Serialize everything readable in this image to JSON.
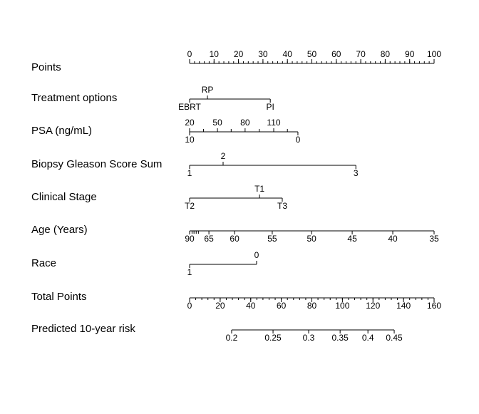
{
  "nomogram": {
    "points_scale": {
      "label": "Points",
      "lim": [
        0,
        100
      ],
      "ticks": [
        0,
        10,
        20,
        30,
        40,
        50,
        60,
        70,
        80,
        90,
        100
      ],
      "minor_step": 2,
      "tick_side": "above"
    },
    "variables": [
      {
        "label": "Treatment options",
        "ticks": [
          {
            "label": "RP",
            "points": 7.3,
            "side": "above"
          },
          {
            "label": "EBRT",
            "points": 0,
            "side": "below"
          },
          {
            "label": "PI",
            "points": 33,
            "side": "below"
          }
        ]
      },
      {
        "label": "PSA (ng/mL)",
        "ticks": [
          {
            "label": 20,
            "points": 0,
            "side": "above"
          },
          {
            "label": null,
            "points": 5.7,
            "side": "above"
          },
          {
            "label": 50,
            "points": 11.4,
            "side": "above"
          },
          {
            "label": null,
            "points": 17,
            "side": "above"
          },
          {
            "label": 80,
            "points": 22.7,
            "side": "above"
          },
          {
            "label": null,
            "points": 28.5,
            "side": "above"
          },
          {
            "label": 110,
            "points": 34.4,
            "side": "above"
          },
          {
            "label": null,
            "points": 40,
            "side": "above"
          },
          {
            "label": 10,
            "points": 0,
            "side": "below"
          },
          {
            "label": 0,
            "points": 44.3,
            "side": "below"
          }
        ]
      },
      {
        "label": "Biopsy Gleason Score Sum",
        "ticks": [
          {
            "label": 1,
            "points": 0,
            "side": "below"
          },
          {
            "label": 2,
            "points": 13.7,
            "side": "above"
          },
          {
            "label": 3,
            "points": 68,
            "side": "below"
          }
        ]
      },
      {
        "label": "Clinical Stage",
        "ticks": [
          {
            "label": "T2",
            "points": 0,
            "side": "below"
          },
          {
            "label": "T1",
            "points": 28.6,
            "side": "above"
          },
          {
            "label": "T3",
            "points": 37.9,
            "side": "below"
          }
        ]
      },
      {
        "label": "Age (Years)",
        "ticks": [
          {
            "label": 90,
            "points": 0,
            "side": "below"
          },
          {
            "label": null,
            "points": 1,
            "side": "below"
          },
          {
            "label": null,
            "points": 1.8,
            "side": "below"
          },
          {
            "label": null,
            "points": 2.7,
            "side": "below"
          },
          {
            "label": null,
            "points": 3.6,
            "side": "below"
          },
          {
            "label": 65,
            "points": 7.9,
            "side": "below"
          },
          {
            "label": 60,
            "points": 18.4,
            "side": "below"
          },
          {
            "label": 55,
            "points": 33.8,
            "side": "below"
          },
          {
            "label": 50,
            "points": 49.9,
            "side": "below"
          },
          {
            "label": 45,
            "points": 66.5,
            "side": "below"
          },
          {
            "label": 40,
            "points": 83.1,
            "side": "below"
          },
          {
            "label": 35,
            "points": 100,
            "side": "below"
          }
        ]
      },
      {
        "label": "Race",
        "ticks": [
          {
            "label": 0,
            "points": 27.4,
            "side": "above"
          },
          {
            "label": 1,
            "points": 0,
            "side": "below"
          }
        ]
      }
    ],
    "total_scale": {
      "label": "Total Points",
      "lim": [
        0,
        160
      ],
      "ticks": [
        0,
        20,
        40,
        60,
        80,
        100,
        120,
        140,
        160
      ],
      "minor_step": 4,
      "tick_side": "below"
    },
    "risk_scale": {
      "label": "Predicted 10-year risk",
      "tick_side": "below",
      "ticks": [
        {
          "label": 0.2,
          "total_points": 27.5
        },
        {
          "label": 0.25,
          "total_points": 54.6
        },
        {
          "label": 0.3,
          "total_points": 77.9
        },
        {
          "label": 0.35,
          "total_points": 98.5
        },
        {
          "label": 0.4,
          "total_points": 116.7
        },
        {
          "label": 0.45,
          "total_points": 133.9
        }
      ]
    }
  }
}
